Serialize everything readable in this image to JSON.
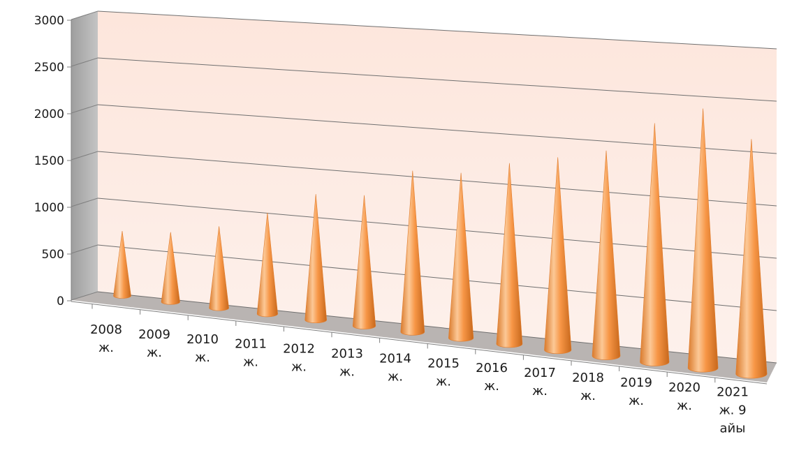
{
  "chart_data": {
    "type": "bar",
    "bar_shape": "cone",
    "style": "3d",
    "categories": [
      [
        "2008",
        "ж."
      ],
      [
        "2009",
        "ж."
      ],
      [
        "2010",
        "ж."
      ],
      [
        "2011",
        "ж."
      ],
      [
        "2012",
        "ж."
      ],
      [
        "2013",
        "ж."
      ],
      [
        "2014",
        "ж."
      ],
      [
        "2015",
        "ж."
      ],
      [
        "2016",
        "ж."
      ],
      [
        "2017",
        "ж."
      ],
      [
        "2018",
        "ж."
      ],
      [
        "2019",
        "ж."
      ],
      [
        "2020",
        "ж."
      ],
      [
        "2021",
        "ж. 9",
        "айы"
      ]
    ],
    "values": [
      660,
      710,
      830,
      1030,
      1280,
      1330,
      1640,
      1680,
      1840,
      1960,
      2090,
      2430,
      2640,
      2390
    ],
    "ylim": [
      0,
      3000
    ],
    "yticks": [
      0,
      500,
      1000,
      1500,
      2000,
      2500,
      3000
    ],
    "grid": true,
    "legend": "none",
    "colors": {
      "bar_main": "#f79646",
      "bar_light": "#fcc896",
      "bar_dark": "#c7681c",
      "back_wall": "#fde8de",
      "side_wall": "#b3b3b3",
      "floor": "#b9b4b2",
      "gridline": "#7f7f7f"
    }
  }
}
